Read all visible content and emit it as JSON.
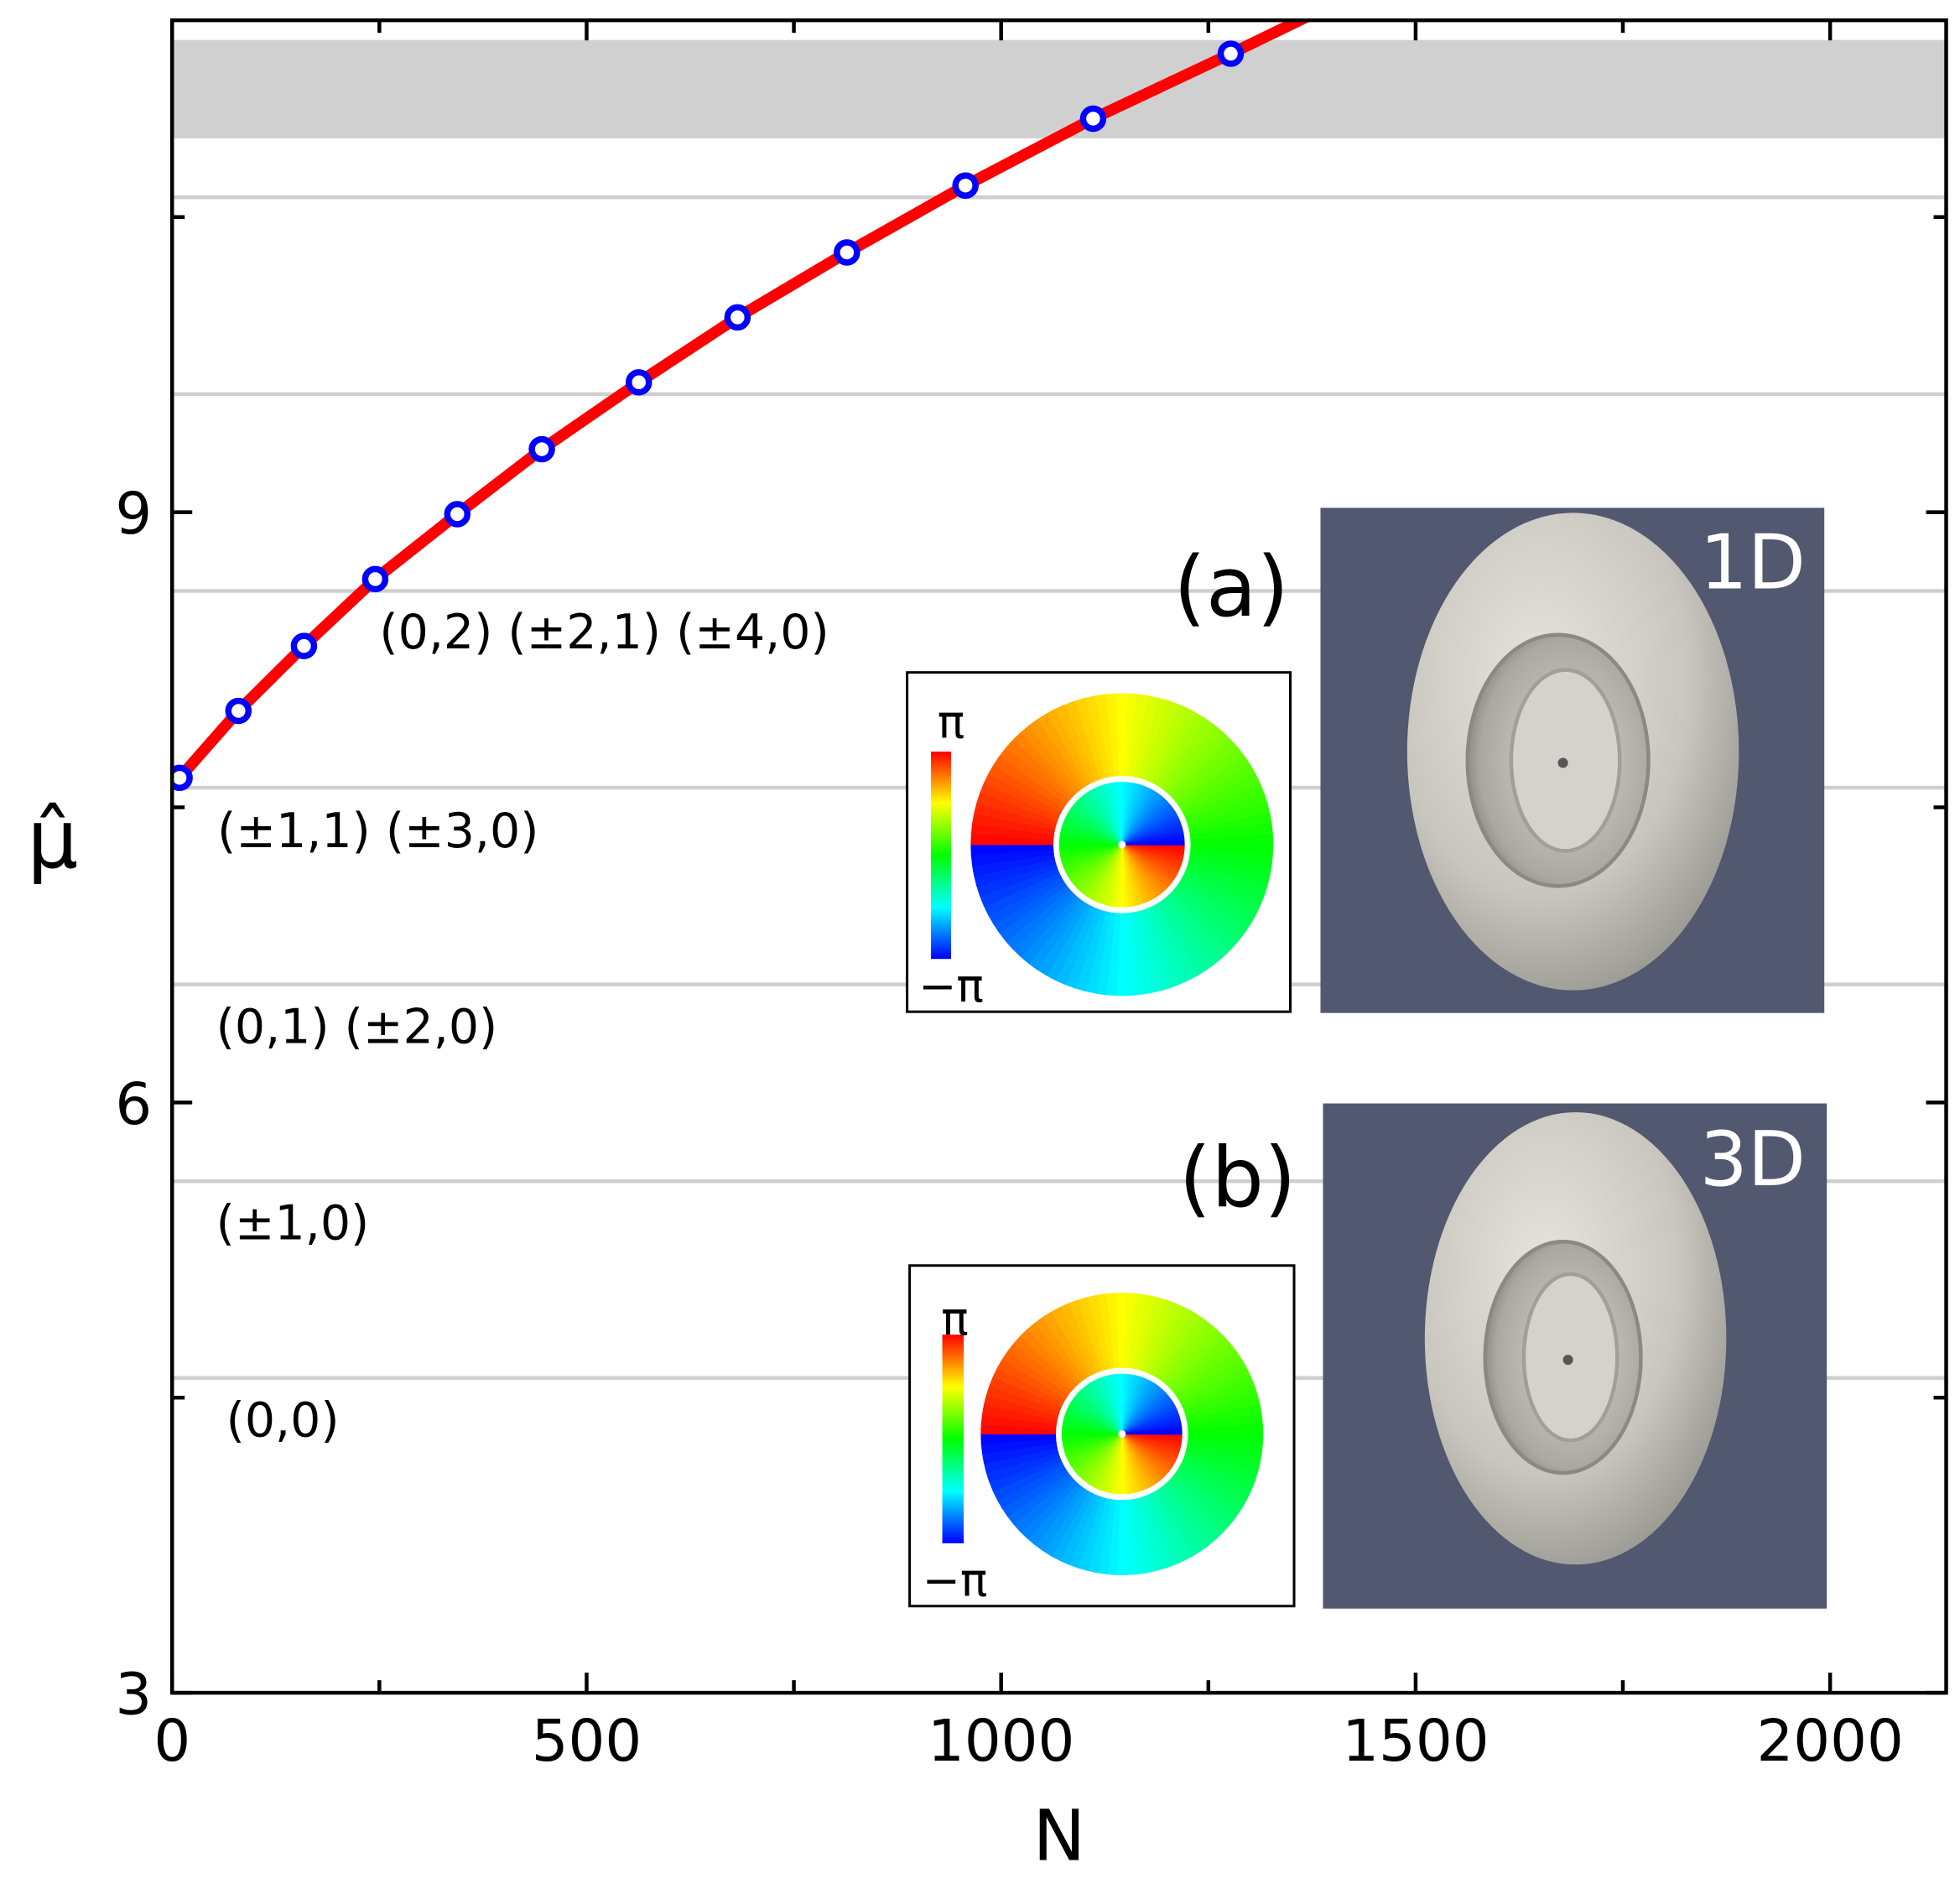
{
  "chart_data": {
    "type": "line",
    "xlabel": "N",
    "ylabel": "μ̂",
    "xlim": [
      0,
      2140
    ],
    "ylim": [
      3,
      11.5
    ],
    "xticks": [
      0,
      500,
      1000,
      1500,
      2000
    ],
    "xminorticks": [
      250,
      750,
      1250,
      1750
    ],
    "yticks": [
      3,
      6,
      9
    ],
    "yminorticks": [
      4.5,
      7.5,
      10.5
    ],
    "levels": [
      4.6,
      5.6,
      6.6,
      7.6,
      8.6,
      9.6,
      10.6
    ],
    "band": [
      10.9,
      11.4
    ],
    "level_labels": [
      "(0,0)",
      "(±1,0)",
      "(0,1) (±2,0)",
      "(±1,1) (±3,0)",
      "(0,2) (±2,1) (±4,0)"
    ],
    "series": [
      {
        "type": "line",
        "color": "#ff0000",
        "x": [
          9,
          80,
          159,
          245,
          344,
          446,
          563,
          682,
          814,
          957,
          1111,
          1277,
          1370
        ],
        "values": [
          7.65,
          7.99,
          8.32,
          8.66,
          8.99,
          9.32,
          9.66,
          9.99,
          10.32,
          10.66,
          11.0,
          11.33,
          11.52
        ]
      },
      {
        "type": "scatter",
        "color": "#0000ff",
        "x": [
          9,
          80,
          159,
          245,
          344,
          446,
          563,
          682,
          814,
          957,
          1111,
          1277
        ],
        "values": [
          7.65,
          7.99,
          8.32,
          8.66,
          8.99,
          9.32,
          9.66,
          9.99,
          10.32,
          10.66,
          11.0,
          11.33
        ]
      }
    ],
    "insets": [
      {
        "label": "(a)",
        "dim": "1D",
        "cbar_max": "π",
        "cbar_min": "−π"
      },
      {
        "label": "(b)",
        "dim": "3D",
        "cbar_max": "π",
        "cbar_min": "−π"
      }
    ]
  }
}
